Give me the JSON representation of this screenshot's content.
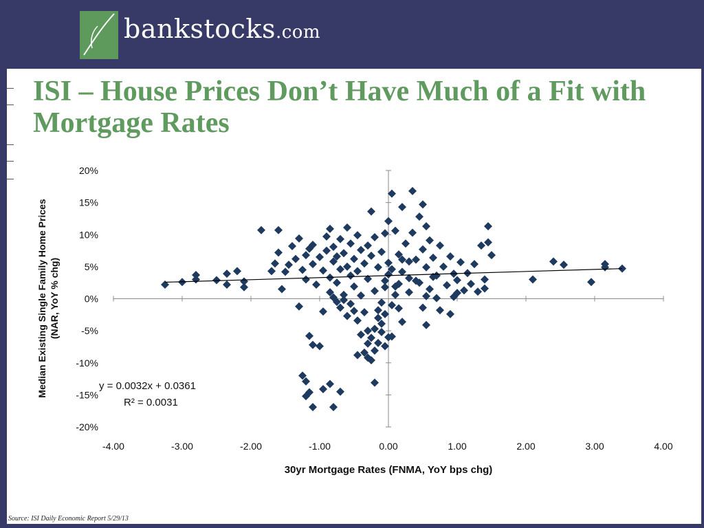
{
  "header": {
    "logo_name": "bankstocks",
    "logo_suffix": ".com",
    "logo_icon": "leaf-stroke-icon",
    "band_color": "#373a66",
    "logo_color": "#5d9a5c"
  },
  "slide": {
    "title": "ISI – House Prices Don’t Have Much of a Fit with Mortgage Rates",
    "title_color": "#5f9a5e"
  },
  "footer": {
    "source": "Source: ISI Daily Economic Report 5/29/13"
  },
  "chart_data": {
    "type": "scatter",
    "title": "",
    "xlabel": "30yr Mortgage Rates (FNMA,  YoY bps chg)",
    "ylabel_lines": [
      "Median Existing Single Family Home Prices",
      "(NAR, YoY % chg)"
    ],
    "xlim": [
      -4,
      4
    ],
    "ylim": [
      -20,
      20
    ],
    "x_ticks": [
      "-4.00",
      "-3.00",
      "-2.00",
      "-1.00",
      "0.00",
      "1.00",
      "2.00",
      "3.00",
      "4.00"
    ],
    "y_ticks": [
      "-20%",
      "-15%",
      "-10%",
      "-5%",
      "0%",
      "5%",
      "10%",
      "15%",
      "20%"
    ],
    "grid": false,
    "marker_color": "#1f3a5f",
    "trendline": {
      "slope": 0.0032,
      "intercept": 0.0361,
      "equation": "y = 0.0032x + 0.0361",
      "r_squared_label": "R² = 0.0031"
    },
    "points": [
      [
        -3.25,
        2.2
      ],
      [
        -3.0,
        2.6
      ],
      [
        -2.8,
        3.0
      ],
      [
        -2.8,
        3.7
      ],
      [
        -2.5,
        2.9
      ],
      [
        -2.35,
        2.2
      ],
      [
        -2.35,
        3.9
      ],
      [
        -2.2,
        4.3
      ],
      [
        -2.1,
        1.8
      ],
      [
        -2.1,
        2.7
      ],
      [
        -1.85,
        10.7
      ],
      [
        -1.6,
        10.7
      ],
      [
        -1.7,
        4.3
      ],
      [
        -1.65,
        5.5
      ],
      [
        -1.6,
        7.2
      ],
      [
        -1.5,
        4.2
      ],
      [
        -1.55,
        1.5
      ],
      [
        -1.45,
        5.3
      ],
      [
        -1.4,
        8.2
      ],
      [
        -1.35,
        6.2
      ],
      [
        -1.3,
        9.4
      ],
      [
        -1.3,
        -1.2
      ],
      [
        -1.25,
        4.5
      ],
      [
        -1.2,
        3.0
      ],
      [
        -1.2,
        6.8
      ],
      [
        -1.15,
        7.8
      ],
      [
        -1.1,
        5.4
      ],
      [
        -1.1,
        8.4
      ],
      [
        -1.05,
        2.2
      ],
      [
        -1.0,
        6.5
      ],
      [
        -0.95,
        4.4
      ],
      [
        -0.9,
        7.5
      ],
      [
        -0.9,
        9.7
      ],
      [
        -0.85,
        10.9
      ],
      [
        -0.85,
        3.3
      ],
      [
        -0.8,
        5.8
      ],
      [
        -0.8,
        8.1
      ],
      [
        -0.75,
        6.6
      ],
      [
        -0.75,
        2.5
      ],
      [
        -0.7,
        4.6
      ],
      [
        -0.7,
        9.3
      ],
      [
        -0.65,
        7.1
      ],
      [
        -0.6,
        5.0
      ],
      [
        -0.6,
        11.1
      ],
      [
        -0.55,
        3.6
      ],
      [
        -0.55,
        8.6
      ],
      [
        -0.5,
        6.2
      ],
      [
        -0.5,
        1.9
      ],
      [
        -0.45,
        9.9
      ],
      [
        -0.45,
        4.3
      ],
      [
        -0.4,
        7.6
      ],
      [
        -0.4,
        0.5
      ],
      [
        -0.35,
        5.5
      ],
      [
        -0.35,
        -2.1
      ],
      [
        -0.3,
        8.3
      ],
      [
        -0.3,
        3.1
      ],
      [
        -0.3,
        -5.0
      ],
      [
        -0.25,
        6.7
      ],
      [
        -0.25,
        13.6
      ],
      [
        -0.2,
        9.6
      ],
      [
        -0.2,
        1.2
      ],
      [
        -0.15,
        4.9
      ],
      [
        -0.15,
        -1.8
      ],
      [
        -0.1,
        7.3
      ],
      [
        -0.1,
        -3.9
      ],
      [
        -0.05,
        10.2
      ],
      [
        -0.05,
        2.8
      ],
      [
        0.0,
        5.6
      ],
      [
        0.0,
        -6.0
      ],
      [
        0.0,
        12.1
      ],
      [
        -0.85,
        1.0
      ],
      [
        -0.8,
        0.2
      ],
      [
        -0.75,
        -0.5
      ],
      [
        -0.7,
        -1.4
      ],
      [
        -0.65,
        0.6
      ],
      [
        -0.6,
        -2.7
      ],
      [
        -0.55,
        -0.8
      ],
      [
        -0.5,
        -1.9
      ],
      [
        -0.45,
        -3.4
      ],
      [
        -0.45,
        -8.8
      ],
      [
        -0.4,
        -5.6
      ],
      [
        -0.35,
        -8.4
      ],
      [
        -0.3,
        -9.2
      ],
      [
        -0.3,
        -7.0
      ],
      [
        -0.25,
        -6.1
      ],
      [
        -0.25,
        -9.6
      ],
      [
        -0.2,
        -8.1
      ],
      [
        -0.2,
        -4.7
      ],
      [
        -0.15,
        -6.9
      ],
      [
        -0.15,
        -3.0
      ],
      [
        -0.1,
        -5.2
      ],
      [
        -0.1,
        -0.6
      ],
      [
        -0.05,
        -7.4
      ],
      [
        -0.05,
        -2.4
      ],
      [
        0.05,
        -5.9
      ],
      [
        -0.2,
        -13.1
      ],
      [
        -1.15,
        -5.8
      ],
      [
        -1.1,
        -7.2
      ],
      [
        -1.0,
        -7.4
      ],
      [
        -1.25,
        -12.0
      ],
      [
        -1.2,
        -12.9
      ],
      [
        -1.2,
        -15.2
      ],
      [
        -1.1,
        -16.9
      ],
      [
        -0.95,
        -14.1
      ],
      [
        -0.85,
        -13.3
      ],
      [
        -0.8,
        -16.9
      ],
      [
        -0.7,
        -14.5
      ],
      [
        -1.15,
        -14.6
      ],
      [
        -0.65,
        -0.2
      ],
      [
        -0.95,
        -2.0
      ],
      [
        0.05,
        16.4
      ],
      [
        0.2,
        14.3
      ],
      [
        0.35,
        16.8
      ],
      [
        0.45,
        12.8
      ],
      [
        0.5,
        14.7
      ],
      [
        0.55,
        11.3
      ],
      [
        0.1,
        10.6
      ],
      [
        0.15,
        6.9
      ],
      [
        0.2,
        4.2
      ],
      [
        0.25,
        8.6
      ],
      [
        0.3,
        3.2
      ],
      [
        0.35,
        10.3
      ],
      [
        0.4,
        6.1
      ],
      [
        0.45,
        2.5
      ],
      [
        0.5,
        7.7
      ],
      [
        0.55,
        4.9
      ],
      [
        0.6,
        9.1
      ],
      [
        0.6,
        1.5
      ],
      [
        0.65,
        6.4
      ],
      [
        0.7,
        3.6
      ],
      [
        0.75,
        8.3
      ],
      [
        0.8,
        5.0
      ],
      [
        0.85,
        2.1
      ],
      [
        0.9,
        6.6
      ],
      [
        0.95,
        3.9
      ],
      [
        1.0,
        2.9
      ],
      [
        1.05,
        5.7
      ],
      [
        1.1,
        1.3
      ],
      [
        1.15,
        4.0
      ],
      [
        1.2,
        2.3
      ],
      [
        1.25,
        5.4
      ],
      [
        1.3,
        1.1
      ],
      [
        1.35,
        8.3
      ],
      [
        1.4,
        3.0
      ],
      [
        1.45,
        11.3
      ],
      [
        1.45,
        8.8
      ],
      [
        1.5,
        6.8
      ],
      [
        1.4,
        1.6
      ],
      [
        0.15,
        2.3
      ],
      [
        0.3,
        5.8
      ],
      [
        0.1,
        0.6
      ],
      [
        0.15,
        -1.5
      ],
      [
        0.2,
        -3.6
      ],
      [
        0.05,
        -1.0
      ],
      [
        0.55,
        -4.1
      ],
      [
        0.5,
        -1.4
      ],
      [
        0.75,
        -1.8
      ],
      [
        0.9,
        -2.4
      ],
      [
        0.55,
        0.4
      ],
      [
        0.95,
        0.3
      ],
      [
        1.0,
        0.9
      ],
      [
        0.7,
        0.1
      ],
      [
        -0.05,
        1.8
      ],
      [
        0.0,
        3.8
      ],
      [
        0.05,
        4.6
      ],
      [
        0.1,
        1.9
      ],
      [
        0.2,
        6.1
      ],
      [
        0.3,
        1.0
      ],
      [
        0.4,
        2.8
      ],
      [
        0.65,
        3.4
      ],
      [
        2.1,
        3.0
      ],
      [
        2.4,
        5.8
      ],
      [
        2.55,
        5.3
      ],
      [
        2.95,
        2.6
      ],
      [
        3.15,
        5.4
      ],
      [
        3.15,
        4.9
      ],
      [
        3.4,
        4.7
      ]
    ]
  }
}
